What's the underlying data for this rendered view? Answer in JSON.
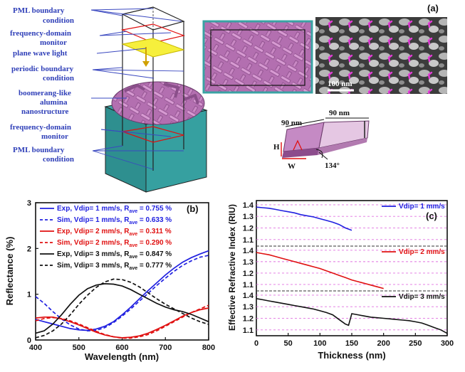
{
  "panel_a": {
    "label": "(a)",
    "annotations": [
      "PML  boundary",
      "condition",
      "frequency-domain",
      "monitor",
      "plane wave light",
      "periodic boundary",
      "condition",
      "boomerang-like",
      "alumina",
      "nanostructure",
      "frequency-domain",
      "monitor",
      "PML  boundary",
      "condition"
    ],
    "scale_bar": "100 nm",
    "dims": {
      "len1": "90 nm",
      "len2": "90 nm",
      "h": "H",
      "w": "W",
      "angle": "134°"
    }
  },
  "chart_data": [
    {
      "type": "line",
      "panel": "(b)",
      "xlabel": "Wavelength (nm)",
      "ylabel": "Reflectance (%)",
      "xlim": [
        400,
        800
      ],
      "ylim": [
        0,
        3
      ],
      "xticks": [
        400,
        500,
        600,
        700,
        800
      ],
      "yticks": [
        0,
        1,
        2,
        3
      ],
      "legend": [
        {
          "text": "Exp, Vdip= 1 mm/s, R",
          "sub": "ave",
          "tail": " = 0.755 %",
          "color": "#2020e0",
          "dash": false
        },
        {
          "text": "Sim, Vdip= 1 mm/s, R",
          "sub": "ave",
          "tail": " = 0.633 %",
          "color": "#2020e0",
          "dash": true
        },
        {
          "text": "Exp, Vdip= 2 mm/s, R",
          "sub": "ave",
          "tail": " = 0.311 %",
          "color": "#e01010",
          "dash": false
        },
        {
          "text": "Sim, Vdip= 2 mm/s, R",
          "sub": "ave",
          "tail": " = 0.290 %",
          "color": "#e01010",
          "dash": true
        },
        {
          "text": "Exp, Vdip= 3 mm/s, R",
          "sub": "ave",
          "tail": " = 0.847 %",
          "color": "#111111",
          "dash": false
        },
        {
          "text": "Sim, Vdip= 3 mm/s, R",
          "sub": "ave",
          "tail": " = 0.777 %",
          "color": "#111111",
          "dash": true
        }
      ],
      "series": [
        {
          "name": "Exp 1 mm/s",
          "color": "#2020e0",
          "dash": false,
          "x": [
            400,
            420,
            440,
            460,
            480,
            500,
            520,
            540,
            560,
            580,
            600,
            620,
            640,
            660,
            680,
            700,
            720,
            740,
            760,
            780,
            800
          ],
          "y": [
            0.45,
            0.4,
            0.35,
            0.3,
            0.25,
            0.22,
            0.21,
            0.24,
            0.3,
            0.4,
            0.55,
            0.72,
            0.9,
            1.08,
            1.25,
            1.42,
            1.57,
            1.7,
            1.8,
            1.88,
            1.95
          ]
        },
        {
          "name": "Sim 1 mm/s",
          "color": "#2020e0",
          "dash": true,
          "x": [
            400,
            420,
            440,
            460,
            480,
            500,
            520,
            540,
            560,
            580,
            600,
            620,
            640,
            660,
            680,
            700,
            720,
            740,
            760,
            780,
            800
          ],
          "y": [
            0.95,
            0.8,
            0.62,
            0.46,
            0.33,
            0.24,
            0.2,
            0.21,
            0.27,
            0.38,
            0.52,
            0.68,
            0.85,
            1.02,
            1.19,
            1.35,
            1.5,
            1.63,
            1.73,
            1.81,
            1.85
          ]
        },
        {
          "name": "Exp 2 mm/s",
          "color": "#e01010",
          "dash": false,
          "x": [
            400,
            420,
            440,
            460,
            480,
            500,
            520,
            540,
            560,
            580,
            600,
            620,
            640,
            660,
            680,
            700,
            720,
            740,
            760,
            780,
            800
          ],
          "y": [
            0.48,
            0.5,
            0.5,
            0.46,
            0.4,
            0.33,
            0.25,
            0.17,
            0.11,
            0.07,
            0.05,
            0.06,
            0.09,
            0.15,
            0.23,
            0.32,
            0.42,
            0.52,
            0.6,
            0.66,
            0.7
          ]
        },
        {
          "name": "Sim 2 mm/s",
          "color": "#e01010",
          "dash": true,
          "x": [
            400,
            420,
            440,
            460,
            480,
            500,
            520,
            540,
            560,
            580,
            600,
            620,
            640,
            660,
            680,
            700,
            720,
            740,
            760,
            780,
            800
          ],
          "y": [
            0.42,
            0.47,
            0.49,
            0.47,
            0.42,
            0.35,
            0.27,
            0.19,
            0.12,
            0.07,
            0.04,
            0.04,
            0.07,
            0.12,
            0.2,
            0.3,
            0.4,
            0.5,
            0.6,
            0.68,
            0.76
          ]
        },
        {
          "name": "Exp 3 mm/s",
          "color": "#111111",
          "dash": false,
          "x": [
            400,
            420,
            440,
            460,
            480,
            500,
            520,
            540,
            560,
            580,
            600,
            620,
            640,
            660,
            680,
            700,
            720,
            740,
            760,
            780,
            800
          ],
          "y": [
            0.15,
            0.2,
            0.35,
            0.55,
            0.78,
            0.98,
            1.12,
            1.2,
            1.23,
            1.22,
            1.18,
            1.1,
            1.0,
            0.9,
            0.8,
            0.72,
            0.66,
            0.62,
            0.56,
            0.48,
            0.4
          ]
        },
        {
          "name": "Sim 3 mm/s",
          "color": "#111111",
          "dash": true,
          "x": [
            400,
            420,
            440,
            460,
            480,
            500,
            520,
            540,
            560,
            580,
            600,
            620,
            640,
            660,
            680,
            700,
            720,
            740,
            760,
            780,
            800
          ],
          "y": [
            0.05,
            0.1,
            0.2,
            0.35,
            0.55,
            0.78,
            0.98,
            1.15,
            1.27,
            1.33,
            1.32,
            1.26,
            1.16,
            1.03,
            0.9,
            0.78,
            0.68,
            0.58,
            0.48,
            0.4,
            0.34
          ]
        }
      ]
    },
    {
      "type": "line",
      "panel": "(c)",
      "xlabel": "Thickness (nm)",
      "ylabel": "Effective Refractive Index (RIU)",
      "xlim": [
        0,
        300
      ],
      "xticks": [
        0,
        50,
        100,
        150,
        200,
        250,
        300
      ],
      "subplots": [
        {
          "label": "Vdip= 1 mm/s",
          "color": "#2020e0",
          "ylim": [
            1.05,
            1.43
          ],
          "yticks": [
            1.4,
            1.3,
            1.2,
            1.1
          ],
          "x": [
            0,
            10,
            20,
            30,
            40,
            50,
            60,
            70,
            80,
            90,
            100,
            110,
            120,
            130,
            140,
            150
          ],
          "y": [
            1.38,
            1.375,
            1.37,
            1.36,
            1.35,
            1.34,
            1.33,
            1.315,
            1.305,
            1.295,
            1.28,
            1.265,
            1.25,
            1.23,
            1.2,
            1.18
          ]
        },
        {
          "label": "Vdip= 2 mm/s",
          "color": "#e01010",
          "ylim": [
            1.05,
            1.43
          ],
          "yticks": [
            1.4,
            1.3,
            1.2,
            1.1
          ],
          "x": [
            0,
            10,
            20,
            30,
            40,
            50,
            60,
            70,
            80,
            90,
            100,
            110,
            120,
            130,
            140,
            150,
            160,
            170,
            180,
            190,
            200
          ],
          "y": [
            1.38,
            1.37,
            1.36,
            1.345,
            1.33,
            1.315,
            1.3,
            1.285,
            1.27,
            1.255,
            1.24,
            1.22,
            1.2,
            1.18,
            1.16,
            1.14,
            1.125,
            1.11,
            1.095,
            1.08,
            1.065
          ]
        },
        {
          "label": "Vdip= 3 mm/s",
          "color": "#111111",
          "ylim": [
            1.05,
            1.43
          ],
          "yticks": [
            1.4,
            1.3,
            1.2,
            1.1
          ],
          "x": [
            0,
            10,
            20,
            30,
            40,
            50,
            60,
            70,
            80,
            90,
            100,
            110,
            120,
            130,
            140,
            145,
            150,
            160,
            170,
            180,
            190,
            200,
            210,
            220,
            230,
            240,
            250,
            260,
            270,
            280,
            290,
            300
          ],
          "y": [
            1.37,
            1.36,
            1.35,
            1.34,
            1.33,
            1.32,
            1.31,
            1.3,
            1.29,
            1.28,
            1.265,
            1.25,
            1.23,
            1.19,
            1.15,
            1.14,
            1.24,
            1.23,
            1.22,
            1.21,
            1.205,
            1.2,
            1.195,
            1.19,
            1.185,
            1.18,
            1.17,
            1.16,
            1.14,
            1.12,
            1.1,
            1.07
          ]
        }
      ]
    }
  ]
}
